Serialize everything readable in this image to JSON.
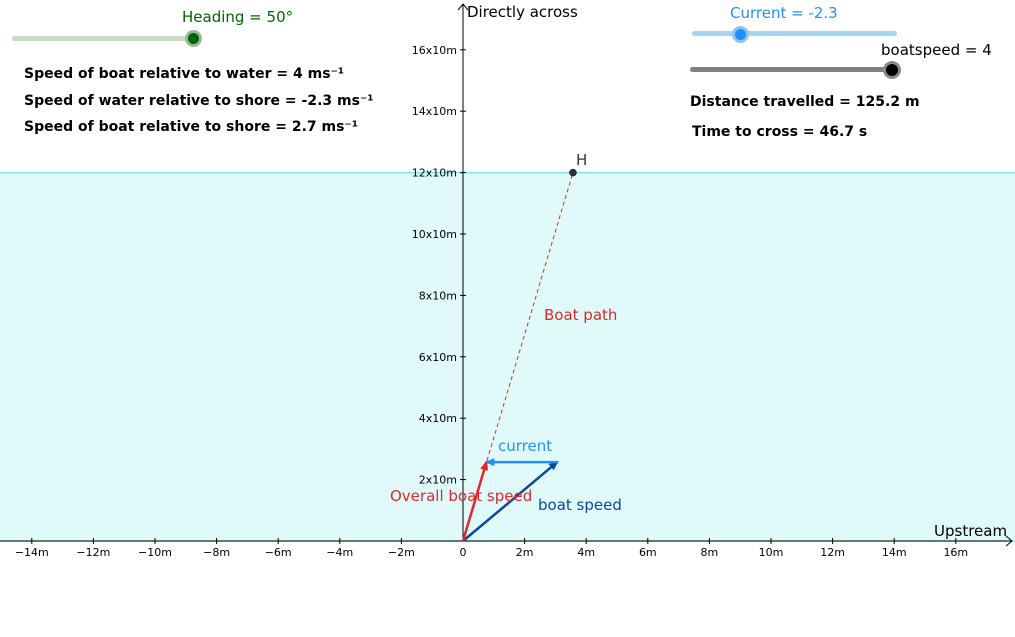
{
  "heading_slider": {
    "label": "Heading = 50°",
    "value": 50,
    "min": 0,
    "max": 55,
    "color": "#006400",
    "track_color": "#c8dcc8"
  },
  "current_slider": {
    "label": "Current = -2.3",
    "value": -2.3,
    "color": "#1e90ff",
    "track_color": "#a6d4f6"
  },
  "boatspeed_slider": {
    "label": "boatspeed = 4",
    "value": 4,
    "color": "#000000",
    "track_color": "#7f7f7f"
  },
  "info": {
    "boat_water": "Speed of boat relative to water = 4 ms⁻¹",
    "water_shore": "Speed of water relative to shore = -2.3 ms⁻¹",
    "boat_shore": "Speed of boat relative to shore = 2.7 ms⁻¹",
    "distance": "Distance travelled = 125.2 m",
    "time": "Time to cross = 46.7 s"
  },
  "axes": {
    "x_label": "Upstream",
    "y_label": "Directly across",
    "x_ticks": [
      {
        "v": -14,
        "t": "−14m"
      },
      {
        "v": -12,
        "t": "−12m"
      },
      {
        "v": -10,
        "t": "−10m"
      },
      {
        "v": -8,
        "t": "−8m"
      },
      {
        "v": -6,
        "t": "−6m"
      },
      {
        "v": -4,
        "t": "−4m"
      },
      {
        "v": -2,
        "t": "−2m"
      },
      {
        "v": 0,
        "t": "0"
      },
      {
        "v": 2,
        "t": "2m"
      },
      {
        "v": 4,
        "t": "4m"
      },
      {
        "v": 6,
        "t": "6m"
      },
      {
        "v": 8,
        "t": "8m"
      },
      {
        "v": 10,
        "t": "10m"
      },
      {
        "v": 12,
        "t": "12m"
      },
      {
        "v": 14,
        "t": "14m"
      },
      {
        "v": 16,
        "t": "16m"
      }
    ],
    "y_ticks": [
      {
        "v": 2,
        "t": "2x10m"
      },
      {
        "v": 4,
        "t": "4x10m"
      },
      {
        "v": 6,
        "t": "6x10m"
      },
      {
        "v": 8,
        "t": "8x10m"
      },
      {
        "v": 10,
        "t": "10x10m"
      },
      {
        "v": 12,
        "t": "12x10m"
      },
      {
        "v": 14,
        "t": "14x10m"
      },
      {
        "v": 16,
        "t": "16x10m"
      }
    ]
  },
  "river": {
    "far_bank_y": 12,
    "fill": "#e0fafa",
    "line_color": "#7fe6e6"
  },
  "vectors": {
    "boat_speed": {
      "label": "boat speed",
      "color": "#0d47a1",
      "from": [
        0,
        0
      ],
      "to": [
        3.06,
        2.57
      ]
    },
    "current": {
      "label": "current",
      "color": "#1e90ff",
      "from": [
        3.06,
        2.57
      ],
      "to": [
        0.76,
        2.57
      ]
    },
    "overall": {
      "label": "Overall boat speed",
      "color": "#e0282d",
      "from": [
        0,
        0
      ],
      "to": [
        0.76,
        2.57
      ]
    }
  },
  "boat_path": {
    "label": "Boat path",
    "color": "#e0282d",
    "end": [
      3.57,
      12
    ]
  },
  "point_h": {
    "label": "H"
  }
}
